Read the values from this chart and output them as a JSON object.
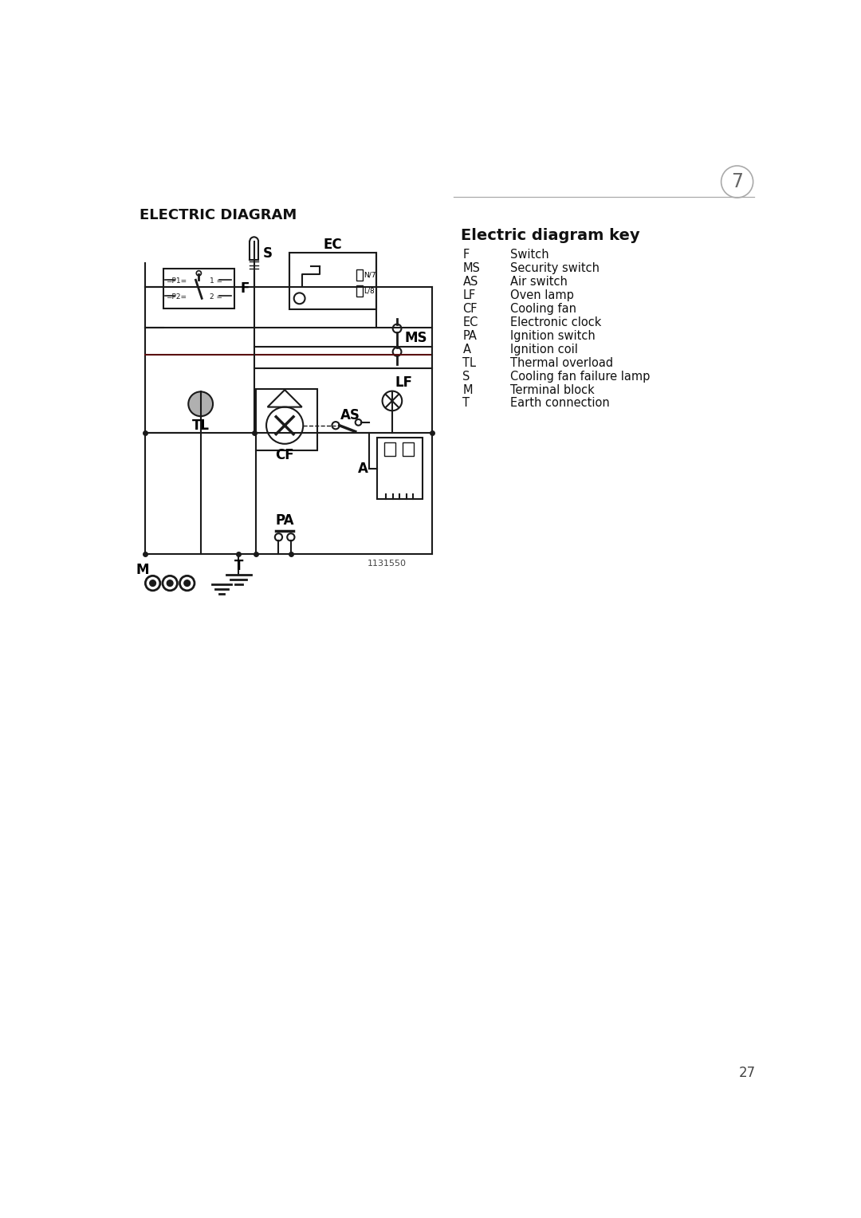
{
  "page_number": "7",
  "title_main": "ELECTRIC DIAGRAM",
  "title_key": "Electric diagram key",
  "key_entries": [
    [
      "F",
      "Switch"
    ],
    [
      "MS",
      "Security switch"
    ],
    [
      "AS",
      "Air switch"
    ],
    [
      "LF",
      "Oven lamp"
    ],
    [
      "CF",
      "Cooling fan"
    ],
    [
      "EC",
      "Electronic clock"
    ],
    [
      "PA",
      "Ignition switch"
    ],
    [
      "A",
      "Ignition coil"
    ],
    [
      "TL",
      "Thermal overload"
    ],
    [
      "S",
      "Cooling fan failure lamp"
    ],
    [
      "M",
      "Terminal block"
    ],
    [
      "T",
      "Earth connection"
    ]
  ],
  "diagram_ref": "1131550",
  "page_num_bottom": "27",
  "bg_color": "#ffffff",
  "line_color": "#1a1a1a",
  "dark_red_color": "#5a1010",
  "gray_color": "#b0b0b0",
  "header_line_color": "#999999"
}
